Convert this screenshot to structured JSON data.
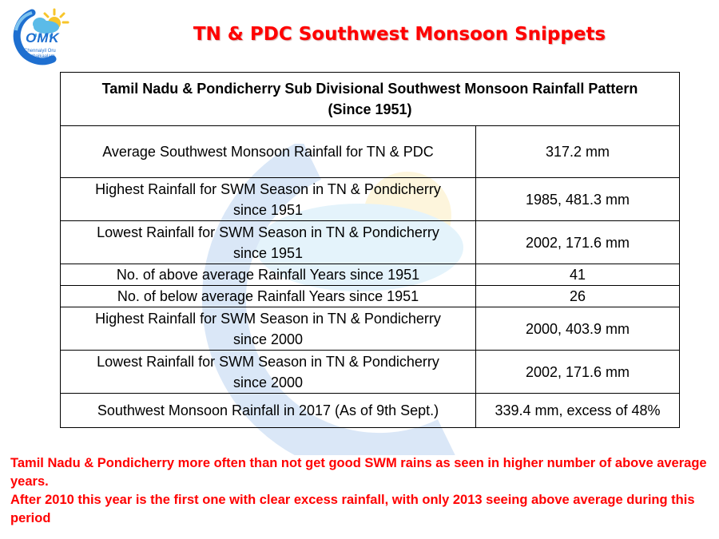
{
  "logo": {
    "letters": "OMK",
    "tagline_1": "Chennaiyil Oru",
    "tagline_2": "Mazhaikaalam"
  },
  "slide_title": "TN & PDC Southwest Monsoon Snippets",
  "table": {
    "title_line_1": "Tamil Nadu & Pondicherry Sub Divisional Southwest Monsoon Rainfall Pattern",
    "title_line_2": "(Since 1951)",
    "rows": [
      {
        "label": "Average Southwest Monsoon Rainfall for TN & PDC",
        "value": "317.2 mm"
      },
      {
        "label_1": "Highest Rainfall for SWM Season in TN & Pondicherry",
        "label_2": "since 1951",
        "value": "1985, 481.3 mm"
      },
      {
        "label_1": "Lowest Rainfall for SWM Season in TN & Pondicherry",
        "label_2": "since 1951",
        "value": "2002, 171.6 mm"
      },
      {
        "label": "No. of above average Rainfall Years since 1951",
        "value": "41"
      },
      {
        "label": "No. of below average Rainfall Years since 1951",
        "value": "26"
      },
      {
        "label_1": "Highest Rainfall for SWM Season in TN & Pondicherry",
        "label_2": "since 2000",
        "value": "2000, 403.9 mm"
      },
      {
        "label_1": "Lowest Rainfall for SWM Season in TN & Pondicherry",
        "label_2": "since 2000",
        "value": "2002, 171.6 mm"
      },
      {
        "label": "Southwest Monsoon Rainfall in 2017 (As of 9th Sept.)",
        "value": "339.4 mm, excess of 48%"
      }
    ]
  },
  "notes": [
    "Tamil Nadu & Pondicherry  more often than not get good SWM rains as seen in higher number of above average years.",
    "After 2010 this year is the first one  with clear excess rainfall, with only 2013 seeing above average during this period"
  ],
  "colors": {
    "title_red": "#ff0000",
    "logo_blue": "#1e6fd0",
    "logo_sun": "#f7c52a",
    "logo_cloud": "#5bbbe8"
  }
}
